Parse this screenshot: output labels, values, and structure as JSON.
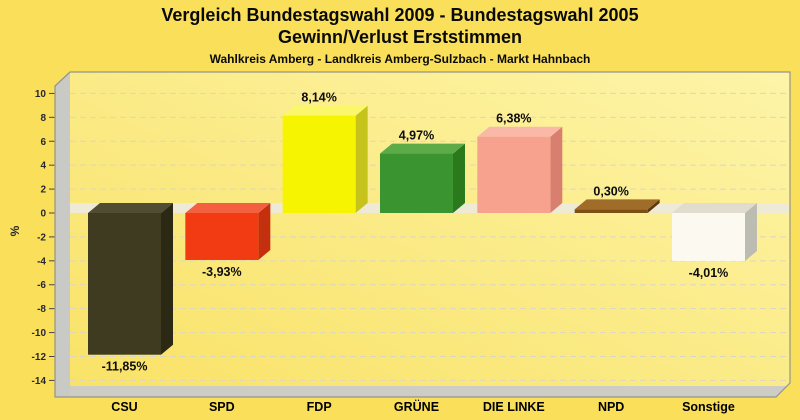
{
  "chart_data": {
    "type": "bar",
    "title_line1": "Vergleich Bundestagswahl 2009 - Bundestagswahl 2005",
    "title_line2": "Gewinn/Verlust Erststimmen",
    "subtitle": "Wahlkreis Amberg - Landkreis Amberg-Sulzbach - Markt Hahnbach",
    "xlabel": "",
    "ylabel": "%",
    "ylim": [
      -14,
      10
    ],
    "ytick_step": 2,
    "grid": true,
    "legend": false,
    "categories": [
      "CSU",
      "SPD",
      "FDP",
      "GRÜNE",
      "DIE LINKE",
      "NPD",
      "Sonstige"
    ],
    "values": [
      -11.85,
      -3.93,
      8.14,
      4.97,
      6.38,
      0.3,
      -4.01
    ],
    "value_labels": [
      "-11,85%",
      "-3,93%",
      "8,14%",
      "4,97%",
      "6,38%",
      "0,30%",
      "-4,01%"
    ],
    "bar_colors": [
      {
        "front": "#3E3B20",
        "top": "#504D32",
        "right": "#2B2914"
      },
      {
        "front": "#F23B12",
        "top": "#F4603F",
        "right": "#C42F0E"
      },
      {
        "front": "#F6F400",
        "top": "#FAF86A",
        "right": "#C6C41C"
      },
      {
        "front": "#3A9530",
        "top": "#5CAB48",
        "right": "#2A7A1C"
      },
      {
        "front": "#F7A18F",
        "top": "#FAB9A8",
        "right": "#D97F70"
      },
      {
        "front": "#7C5013",
        "top": "#A06C2A",
        "right": "#5C3A0C"
      },
      {
        "front": "#FCFAF0",
        "top": "#E0DDCF",
        "right": "#BDBCB2"
      }
    ]
  },
  "colors": {
    "page_bg": "#FAE05A",
    "plot_bg_light": "#FDF4A8",
    "plot_bg_dark": "#F9E266",
    "wall": "#C9C9C5",
    "floor": "#CDCDC5",
    "zero_band": "#EFEAD6",
    "gridline": "#DAD6C6",
    "border": "#94948A",
    "tick_text": "#26262E",
    "label_text": "#0d0d0d"
  }
}
